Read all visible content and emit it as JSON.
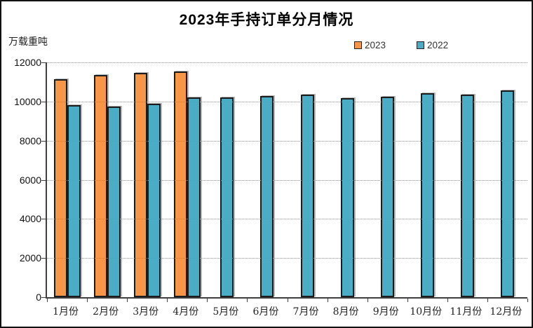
{
  "title": "2023年手持订单分月情况",
  "y_axis_unit": "万载重吨",
  "legend": {
    "items": [
      {
        "label": "2023",
        "color": "#F79646"
      },
      {
        "label": "2022",
        "color": "#4BACC6"
      }
    ]
  },
  "colors": {
    "series_2023": "#F79646",
    "series_2022": "#4BACC6",
    "bar_border": "#1c1c1c",
    "gridline": "#8c8c8c",
    "axis": "#3f3f3f"
  },
  "chart_data": {
    "type": "bar",
    "title": "2023年手持订单分月情况",
    "ylabel": "万载重吨",
    "xlabel": "",
    "categories": [
      "1月份",
      "2月份",
      "3月份",
      "4月份",
      "5月份",
      "6月份",
      "7月份",
      "8月份",
      "9月份",
      "10月份",
      "11月份",
      "12月份"
    ],
    "series": [
      {
        "name": "2023",
        "color": "#F79646",
        "values": [
          11150,
          11370,
          11450,
          11520,
          null,
          null,
          null,
          null,
          null,
          null,
          null,
          null
        ]
      },
      {
        "name": "2022",
        "color": "#4BACC6",
        "values": [
          9800,
          9750,
          9890,
          10210,
          10200,
          10290,
          10350,
          10190,
          10240,
          10440,
          10350,
          10560
        ]
      }
    ],
    "ylim": [
      0,
      12000
    ],
    "yticks": [
      0,
      2000,
      4000,
      6000,
      8000,
      10000,
      12000
    ],
    "grid": "horizontal-dotted",
    "legend_position": "top-right"
  }
}
